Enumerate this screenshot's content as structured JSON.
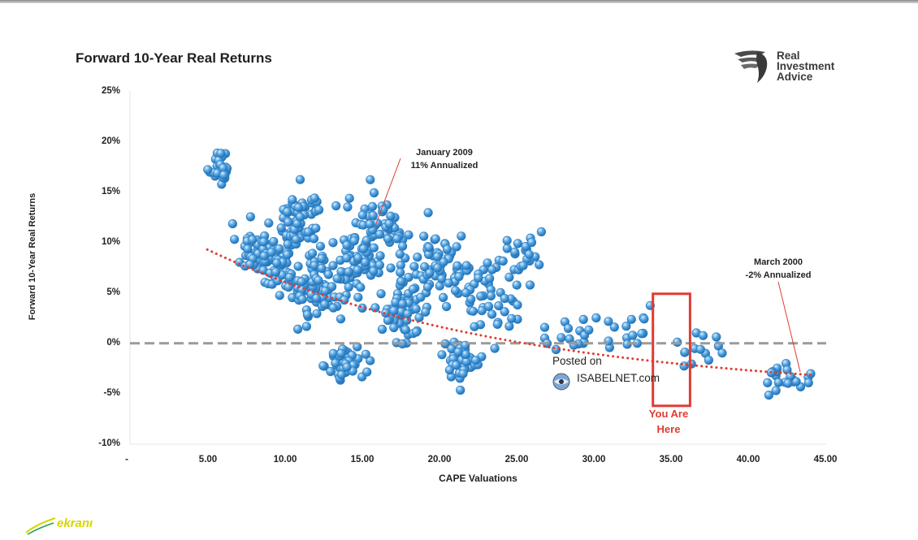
{
  "title": "Forward 10-Year Real Returns",
  "logo": {
    "line1": "Real",
    "line2": "Investment",
    "line3": "Advice"
  },
  "annotations": {
    "jan2009_line1": "January 2009",
    "jan2009_line2": "11% Annualized",
    "mar2000_line1": "March 2000",
    "mar2000_line2": "-2% Annualized",
    "you_are_line1": "You Are",
    "you_are_line2": "Here"
  },
  "watermark_posted": {
    "line1": "Posted on",
    "line2": "ISABELNET.com"
  },
  "watermark_corner": "ekranı",
  "colors": {
    "points": "#4a9ad8",
    "trend": "#e03c31",
    "zero_line": "#9a9a9a",
    "marker_box": "#e03c31"
  },
  "chart_data": {
    "type": "scatter",
    "title": "Forward 10-Year Real Returns",
    "xlabel": "CAPE Valuations",
    "ylabel": "Forward 10-Year Real Returns",
    "xlim": [
      0,
      45
    ],
    "ylim": [
      -10,
      25
    ],
    "x_ticks": [
      "-",
      "5.00",
      "10.00",
      "15.00",
      "20.00",
      "25.00",
      "30.00",
      "35.00",
      "40.00",
      "45.00"
    ],
    "y_ticks": [
      "25%",
      "20%",
      "15%",
      "10%",
      "5%",
      "0%",
      "-5%",
      "-10%"
    ],
    "grid": false,
    "clusters": [
      {
        "cx": 5.8,
        "cy": 17.5,
        "sx": 0.6,
        "sy": 1.5,
        "n": 30
      },
      {
        "cx": 7.8,
        "cy": 9.5,
        "sx": 0.8,
        "sy": 2.0,
        "n": 30
      },
      {
        "cx": 9.5,
        "cy": 8.0,
        "sx": 1.2,
        "sy": 2.6,
        "n": 70
      },
      {
        "cx": 11.0,
        "cy": 12.5,
        "sx": 1.2,
        "sy": 2.4,
        "n": 60
      },
      {
        "cx": 12.0,
        "cy": 5.5,
        "sx": 1.3,
        "sy": 3.0,
        "n": 70
      },
      {
        "cx": 14.0,
        "cy": -2.0,
        "sx": 1.0,
        "sy": 1.4,
        "n": 45
      },
      {
        "cx": 14.5,
        "cy": 8.0,
        "sx": 1.5,
        "sy": 3.5,
        "n": 70
      },
      {
        "cx": 16.5,
        "cy": 12.0,
        "sx": 1.5,
        "sy": 2.5,
        "n": 45
      },
      {
        "cx": 17.5,
        "cy": 3.5,
        "sx": 1.6,
        "sy": 3.2,
        "n": 60
      },
      {
        "cx": 20.0,
        "cy": 7.5,
        "sx": 1.8,
        "sy": 3.0,
        "n": 70
      },
      {
        "cx": 21.5,
        "cy": -1.5,
        "sx": 1.2,
        "sy": 1.6,
        "n": 40
      },
      {
        "cx": 23.0,
        "cy": 5.0,
        "sx": 1.6,
        "sy": 2.8,
        "n": 40
      },
      {
        "cx": 25.5,
        "cy": 8.0,
        "sx": 1.3,
        "sy": 2.0,
        "n": 25
      },
      {
        "cx": 28.5,
        "cy": 1.0,
        "sx": 1.8,
        "sy": 2.0,
        "n": 18
      },
      {
        "cx": 32.5,
        "cy": 1.5,
        "sx": 1.6,
        "sy": 2.4,
        "n": 14
      },
      {
        "cx": 37.0,
        "cy": -0.5,
        "sx": 1.5,
        "sy": 1.6,
        "n": 14
      },
      {
        "cx": 42.5,
        "cy": -3.5,
        "sx": 1.3,
        "sy": 1.1,
        "n": 22
      }
    ],
    "trend": {
      "type": "exponential",
      "a": 18.6,
      "b": -0.05,
      "offset": -5.2,
      "x_range": [
        5,
        44
      ]
    },
    "reference_line": {
      "y": 0,
      "style": "dashed"
    },
    "highlight_box": {
      "x": [
        33.8,
        36.2
      ],
      "y": [
        -6.2,
        4.9
      ]
    }
  }
}
